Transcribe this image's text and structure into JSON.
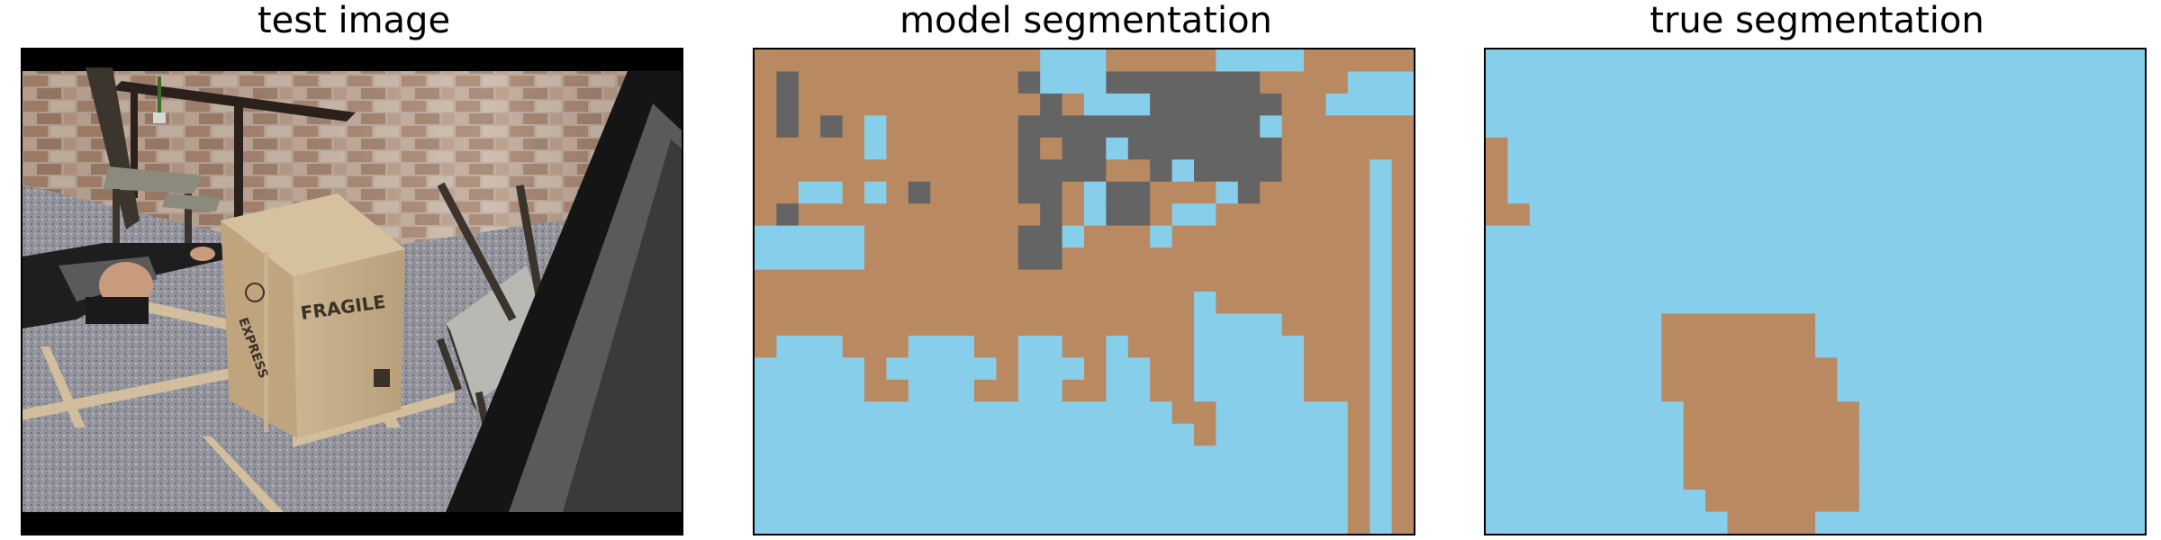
{
  "panels": {
    "test_image": {
      "title": "test image"
    },
    "model_segmentation": {
      "title": "model segmentation"
    },
    "true_segmentation": {
      "title": "true segmentation"
    }
  },
  "photo_text": {
    "box_label": "FRAGILE",
    "box_brand": "EXPRESS"
  },
  "colors": {
    "class_background": "#87ceeb",
    "class_object": "#b98a62",
    "class_other": "#646464",
    "letterbox": "#000000"
  },
  "segmentation": {
    "grid": {
      "cols": 30,
      "rows": 22
    },
    "model_mask": [
      "111111111111102011111000211111",
      "131111111111322233333331111002",
      "131111111111131222333333110000",
      "131310111111333333333330111111",
      "111110111111313323333333111111",
      "111111111111333311323333111101",
      "110010131111331233111231111101",
      "131111111111131233122111111101",
      "000001111111330111011111111101",
      "000001111111331111111111111101",
      "111111111111111111111111111101",
      "111111111111111111110111111101",
      "111111111111111111110000111101",
      "100011100011001101110000011101",
      "000001000001000100110000011101",
      "000001100011001100110000011101",
      "000000000000000000011000000101",
      "000000000000000000001000000101",
      "000000000000000000000000000101",
      "000000000000000000000000000101",
      "000000000000000000000000000101",
      "000000000000000000000000000101"
    ],
    "true_mask": [
      "000000000000000000000000000000",
      "000000000000000000000000000000",
      "000000000000000000000000000000",
      "000000000000000000000000000000",
      "100000000000000000000000000000",
      "100000000000000000000000000000",
      "100000000000000000000000000000",
      "110000000000000000000000000000",
      "000000000000000000000000000000",
      "000000000000000000000000000000",
      "000000000000000000000000000000",
      "000000000000000000000000000000",
      "000000001111111000000000000000",
      "000000001111111000000000000000",
      "000000001111111100000000000000",
      "000000001111111100000000000000",
      "000000000111111110000000000000",
      "000000000111111110000000000000",
      "000000000111111110000000000000",
      "000000000111111110000000000000",
      "000000000011111110000000000000",
      "000000000001111000000000000000"
    ]
  }
}
